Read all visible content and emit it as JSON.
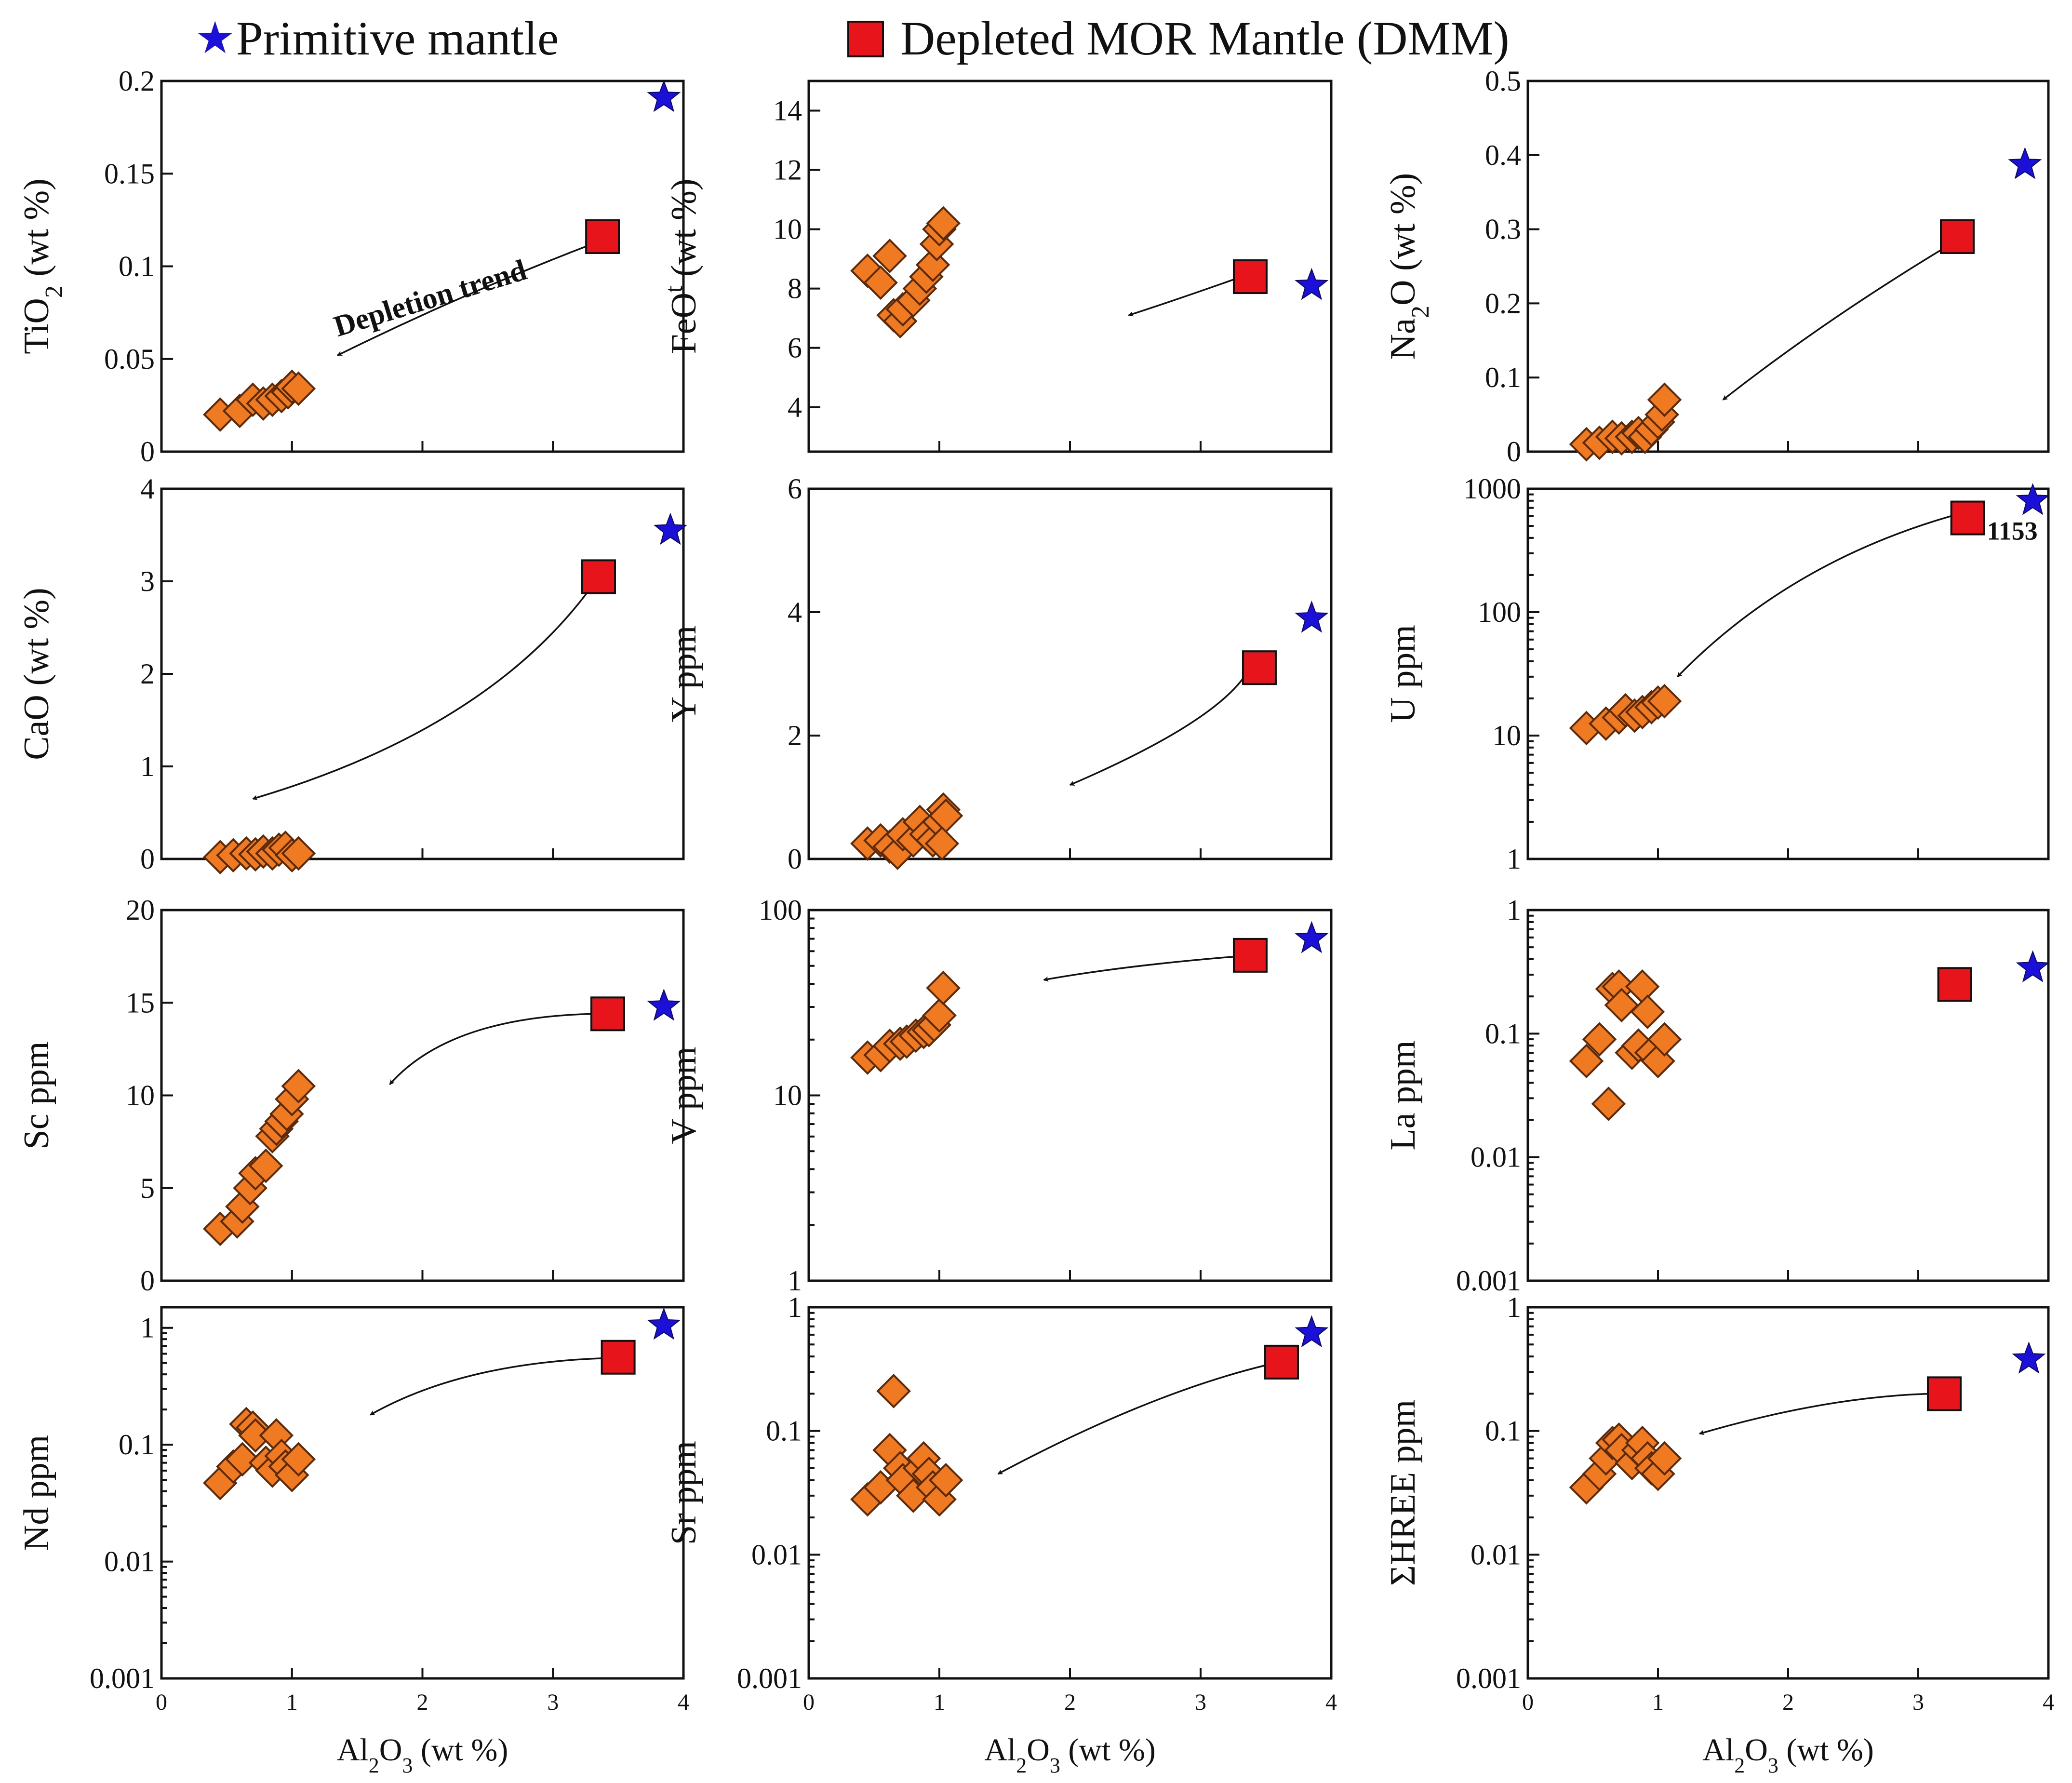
{
  "legend": {
    "primitive_label": "Primitive mantle",
    "dmm_label": "Depleted MOR Mantle (DMM)"
  },
  "colors": {
    "primitive": "#1a10d8",
    "dmm": "#e8141c",
    "sample": "#f07a22",
    "sample_edge": "#5a2a0a"
  },
  "chart_data": [
    {
      "id": "tio2",
      "type": "scatter",
      "scale": "linear",
      "ylabel": "TiO2 (wt %)",
      "ylim": [
        0,
        0.2
      ],
      "xlim": [
        0,
        4
      ],
      "yticks": [
        {
          "v": 0,
          "t": "0"
        },
        {
          "v": 0.05,
          "t": "0.05"
        },
        {
          "v": 0.1,
          "t": "0.1"
        },
        {
          "v": 0.15,
          "t": "0.15"
        },
        {
          "v": 0.2,
          "t": "0.2"
        }
      ],
      "pm": [
        3.85,
        0.191
      ],
      "dmm": [
        3.38,
        0.116
      ],
      "samples": [
        [
          0.45,
          0.02
        ],
        [
          0.6,
          0.022
        ],
        [
          0.7,
          0.028
        ],
        [
          0.78,
          0.026
        ],
        [
          0.85,
          0.028
        ],
        [
          0.92,
          0.03
        ],
        [
          0.97,
          0.032
        ],
        [
          1.0,
          0.035
        ],
        [
          1.05,
          0.034
        ]
      ],
      "arrow": [
        [
          3.3,
          0.112
        ],
        [
          2.3,
          0.085
        ],
        [
          1.35,
          0.052
        ]
      ],
      "annotation": "Depletion trend"
    },
    {
      "id": "feo",
      "type": "scatter",
      "scale": "linear",
      "ylabel": "FeOt (wt %)",
      "ylim": [
        2.5,
        15
      ],
      "xlim": [
        0,
        4
      ],
      "yticks": [
        {
          "v": 4,
          "t": "4"
        },
        {
          "v": 6,
          "t": "6"
        },
        {
          "v": 8,
          "t": "8"
        },
        {
          "v": 10,
          "t": "10"
        },
        {
          "v": 12,
          "t": "12"
        },
        {
          "v": 14,
          "t": "14"
        }
      ],
      "pm": [
        3.85,
        8.1
      ],
      "dmm": [
        3.38,
        8.4
      ],
      "samples": [
        [
          0.45,
          8.6
        ],
        [
          0.55,
          8.2
        ],
        [
          0.62,
          9.1
        ],
        [
          0.65,
          7.1
        ],
        [
          0.7,
          6.9
        ],
        [
          0.72,
          7.3
        ],
        [
          0.8,
          7.6
        ],
        [
          0.85,
          8.0
        ],
        [
          0.9,
          8.4
        ],
        [
          0.95,
          8.8
        ],
        [
          0.98,
          9.5
        ],
        [
          1.0,
          10.0
        ],
        [
          1.03,
          10.2
        ]
      ],
      "arrow": [
        [
          3.25,
          8.3
        ],
        [
          2.8,
          7.6
        ],
        [
          2.45,
          7.1
        ]
      ]
    },
    {
      "id": "na2o",
      "type": "scatter",
      "scale": "linear",
      "ylabel": "Na2O (wt %)",
      "ylim": [
        0,
        0.5
      ],
      "xlim": [
        0,
        4
      ],
      "yticks": [
        {
          "v": 0,
          "t": "0"
        },
        {
          "v": 0.1,
          "t": "0.1"
        },
        {
          "v": 0.2,
          "t": "0.2"
        },
        {
          "v": 0.3,
          "t": "0.3"
        },
        {
          "v": 0.4,
          "t": "0.4"
        },
        {
          "v": 0.5,
          "t": "0.5"
        }
      ],
      "pm": [
        3.82,
        0.387
      ],
      "dmm": [
        3.3,
        0.29
      ],
      "samples": [
        [
          0.45,
          0.01
        ],
        [
          0.55,
          0.012
        ],
        [
          0.65,
          0.02
        ],
        [
          0.72,
          0.018
        ],
        [
          0.8,
          0.02
        ],
        [
          0.85,
          0.025
        ],
        [
          0.9,
          0.02
        ],
        [
          0.95,
          0.03
        ],
        [
          1.0,
          0.04
        ],
        [
          1.03,
          0.05
        ],
        [
          1.05,
          0.07
        ]
      ],
      "arrow": [
        [
          3.25,
          0.28
        ],
        [
          2.3,
          0.18
        ],
        [
          1.5,
          0.07
        ]
      ]
    },
    {
      "id": "cao",
      "type": "scatter",
      "scale": "linear",
      "ylabel": "CaO (wt %)",
      "ylim": [
        0,
        4
      ],
      "xlim": [
        0,
        4
      ],
      "yticks": [
        {
          "v": 0,
          "t": "0"
        },
        {
          "v": 1,
          "t": "1"
        },
        {
          "v": 2,
          "t": "2"
        },
        {
          "v": 3,
          "t": "3"
        },
        {
          "v": 4,
          "t": "4"
        }
      ],
      "pm": [
        3.9,
        3.55
      ],
      "dmm": [
        3.35,
        3.05
      ],
      "samples": [
        [
          0.45,
          0.02
        ],
        [
          0.55,
          0.04
        ],
        [
          0.65,
          0.06
        ],
        [
          0.72,
          0.05
        ],
        [
          0.78,
          0.08
        ],
        [
          0.85,
          0.06
        ],
        [
          0.9,
          0.1
        ],
        [
          0.95,
          0.12
        ],
        [
          1.0,
          0.04
        ],
        [
          1.05,
          0.06
        ]
      ],
      "arrow": [
        [
          3.3,
          2.95
        ],
        [
          2.5,
          1.4
        ],
        [
          0.7,
          0.65
        ]
      ]
    },
    {
      "id": "y",
      "type": "scatter",
      "scale": "linear",
      "ylabel": "Y ppm",
      "ylim": [
        0,
        6
      ],
      "xlim": [
        0,
        4
      ],
      "yticks": [
        {
          "v": 0,
          "t": "0"
        },
        {
          "v": 2,
          "t": "2"
        },
        {
          "v": 4,
          "t": "4"
        },
        {
          "v": 6,
          "t": "6"
        }
      ],
      "pm": [
        3.85,
        3.9
      ],
      "dmm": [
        3.45,
        3.1
      ],
      "samples": [
        [
          0.45,
          0.25
        ],
        [
          0.55,
          0.3
        ],
        [
          0.62,
          0.2
        ],
        [
          0.68,
          0.1
        ],
        [
          0.72,
          0.4
        ],
        [
          0.8,
          0.3
        ],
        [
          0.85,
          0.6
        ],
        [
          0.9,
          0.4
        ],
        [
          0.95,
          0.3
        ],
        [
          1.0,
          0.6
        ],
        [
          1.03,
          0.8
        ],
        [
          1.05,
          0.7
        ],
        [
          1.02,
          0.25
        ]
      ],
      "arrow": [
        [
          3.35,
          3.0
        ],
        [
          3.1,
          2.2
        ],
        [
          2.0,
          1.2
        ]
      ]
    },
    {
      "id": "u",
      "type": "scatter",
      "scale": "log",
      "ylabel": "U ppm",
      "ylim": [
        1,
        1000
      ],
      "xlim": [
        0,
        4
      ],
      "yticks": [
        {
          "v": 1,
          "t": "1"
        },
        {
          "v": 10,
          "t": "10"
        },
        {
          "v": 100,
          "t": "100"
        },
        {
          "v": 1000,
          "t": "1000"
        }
      ],
      "pm": [
        3.88,
        800
      ],
      "dmm": [
        3.38,
        580
      ],
      "samples": [
        [
          0.45,
          11.5
        ],
        [
          0.6,
          12.5
        ],
        [
          0.7,
          14
        ],
        [
          0.75,
          16
        ],
        [
          0.82,
          14.5
        ],
        [
          0.88,
          15.5
        ],
        [
          0.95,
          17
        ],
        [
          1.0,
          18.5
        ],
        [
          1.05,
          19
        ]
      ],
      "arrow": [
        [
          3.25,
          600
        ],
        [
          2.0,
          250
        ],
        [
          1.15,
          30
        ]
      ],
      "annotation": "1153"
    },
    {
      "id": "sc",
      "type": "scatter",
      "scale": "linear",
      "ylabel": "Sc ppm",
      "ylim": [
        0,
        20
      ],
      "xlim": [
        0,
        4
      ],
      "yticks": [
        {
          "v": 0,
          "t": "0"
        },
        {
          "v": 5,
          "t": "5"
        },
        {
          "v": 10,
          "t": "10"
        },
        {
          "v": 15,
          "t": "15"
        },
        {
          "v": 20,
          "t": "20"
        }
      ],
      "pm": [
        3.85,
        14.8
      ],
      "dmm": [
        3.42,
        14.4
      ],
      "samples": [
        [
          0.45,
          2.8
        ],
        [
          0.58,
          3.2
        ],
        [
          0.62,
          4.0
        ],
        [
          0.68,
          5.0
        ],
        [
          0.72,
          5.8
        ],
        [
          0.8,
          6.2
        ],
        [
          0.85,
          7.8
        ],
        [
          0.88,
          8.2
        ],
        [
          0.92,
          8.6
        ],
        [
          0.96,
          9.0
        ],
        [
          1.0,
          9.8
        ],
        [
          1.05,
          10.5
        ]
      ],
      "arrow": [
        [
          3.3,
          14.4
        ],
        [
          2.2,
          14.2
        ],
        [
          1.75,
          10.6
        ]
      ]
    },
    {
      "id": "v",
      "type": "scatter",
      "scale": "log",
      "ylabel": "V ppm",
      "ylim": [
        1,
        100
      ],
      "xlim": [
        0,
        4
      ],
      "yticks": [
        {
          "v": 1,
          "t": "1"
        },
        {
          "v": 10,
          "t": "10"
        },
        {
          "v": 100,
          "t": "100"
        }
      ],
      "pm": [
        3.85,
        70
      ],
      "dmm": [
        3.38,
        57
      ],
      "samples": [
        [
          0.45,
          16
        ],
        [
          0.55,
          16.5
        ],
        [
          0.62,
          18.5
        ],
        [
          0.7,
          19
        ],
        [
          0.75,
          19.5
        ],
        [
          0.82,
          21
        ],
        [
          0.88,
          22
        ],
        [
          0.92,
          22.5
        ],
        [
          0.96,
          24
        ],
        [
          1.0,
          27
        ],
        [
          1.03,
          38
        ]
      ],
      "arrow": [
        [
          3.25,
          56
        ],
        [
          2.4,
          50
        ],
        [
          1.8,
          42
        ]
      ]
    },
    {
      "id": "la",
      "type": "scatter",
      "scale": "log",
      "ylabel": "La ppm",
      "ylim": [
        0.001,
        1
      ],
      "xlim": [
        0,
        4
      ],
      "yticks": [
        {
          "v": 0.001,
          "t": "0.001"
        },
        {
          "v": 0.01,
          "t": "0.01"
        },
        {
          "v": 0.1,
          "t": "0.1"
        },
        {
          "v": 1,
          "t": "1"
        }
      ],
      "pm": [
        3.88,
        0.34
      ],
      "dmm": [
        3.28,
        0.25
      ],
      "samples": [
        [
          0.45,
          0.06
        ],
        [
          0.55,
          0.09
        ],
        [
          0.62,
          0.027
        ],
        [
          0.65,
          0.23
        ],
        [
          0.7,
          0.24
        ],
        [
          0.72,
          0.17
        ],
        [
          0.8,
          0.07
        ],
        [
          0.85,
          0.08
        ],
        [
          0.88,
          0.24
        ],
        [
          0.92,
          0.15
        ],
        [
          0.95,
          0.07
        ],
        [
          1.0,
          0.06
        ],
        [
          1.05,
          0.09
        ]
      ]
    },
    {
      "id": "nd",
      "type": "scatter",
      "scale": "log",
      "ylabel": "Nd ppm",
      "ylim": [
        0.001,
        1.5
      ],
      "xlim": [
        0,
        4
      ],
      "yticks": [
        {
          "v": 0.001,
          "t": "0.001"
        },
        {
          "v": 0.01,
          "t": "0.01"
        },
        {
          "v": 0.1,
          "t": "0.1"
        },
        {
          "v": 1,
          "t": "1"
        }
      ],
      "pm": [
        3.85,
        1.05
      ],
      "dmm": [
        3.5,
        0.56
      ],
      "samples": [
        [
          0.45,
          0.047
        ],
        [
          0.55,
          0.065
        ],
        [
          0.62,
          0.075
        ],
        [
          0.65,
          0.15
        ],
        [
          0.7,
          0.14
        ],
        [
          0.72,
          0.12
        ],
        [
          0.8,
          0.07
        ],
        [
          0.85,
          0.06
        ],
        [
          0.88,
          0.12
        ],
        [
          0.92,
          0.08
        ],
        [
          0.95,
          0.065
        ],
        [
          1.0,
          0.055
        ],
        [
          1.05,
          0.075
        ]
      ],
      "arrow": [
        [
          3.4,
          0.55
        ],
        [
          2.3,
          0.5
        ],
        [
          1.6,
          0.18
        ]
      ]
    },
    {
      "id": "sr",
      "type": "scatter",
      "scale": "log",
      "ylabel": "Sr ppm",
      "ylim": [
        0.001,
        1
      ],
      "xlim": [
        0,
        4
      ],
      "yticks": [
        {
          "v": 0.001,
          "t": "0.001"
        },
        {
          "v": 0.01,
          "t": "0.01"
        },
        {
          "v": 0.1,
          "t": "0.1"
        },
        {
          "v": 1,
          "t": "1"
        }
      ],
      "pm": [
        3.85,
        0.62
      ],
      "dmm": [
        3.62,
        0.36
      ],
      "samples": [
        [
          0.45,
          0.028
        ],
        [
          0.55,
          0.035
        ],
        [
          0.62,
          0.07
        ],
        [
          0.65,
          0.21
        ],
        [
          0.7,
          0.05
        ],
        [
          0.72,
          0.04
        ],
        [
          0.8,
          0.03
        ],
        [
          0.85,
          0.05
        ],
        [
          0.88,
          0.06
        ],
        [
          0.92,
          0.045
        ],
        [
          0.95,
          0.035
        ],
        [
          1.0,
          0.028
        ],
        [
          1.05,
          0.04
        ]
      ],
      "arrow": [
        [
          3.5,
          0.34
        ],
        [
          2.6,
          0.2
        ],
        [
          1.45,
          0.045
        ]
      ]
    },
    {
      "id": "hree",
      "type": "scatter",
      "scale": "log",
      "ylabel": "ΣHREE ppm",
      "ylim": [
        0.001,
        1
      ],
      "xlim": [
        0,
        4
      ],
      "yticks": [
        {
          "v": 0.001,
          "t": "0.001"
        },
        {
          "v": 0.01,
          "t": "0.01"
        },
        {
          "v": 0.1,
          "t": "0.1"
        },
        {
          "v": 1,
          "t": "1"
        }
      ],
      "pm": [
        3.85,
        0.38
      ],
      "dmm": [
        3.2,
        0.2
      ],
      "samples": [
        [
          0.45,
          0.035
        ],
        [
          0.55,
          0.045
        ],
        [
          0.6,
          0.06
        ],
        [
          0.65,
          0.08
        ],
        [
          0.7,
          0.085
        ],
        [
          0.72,
          0.07
        ],
        [
          0.8,
          0.055
        ],
        [
          0.85,
          0.07
        ],
        [
          0.88,
          0.08
        ],
        [
          0.92,
          0.06
        ],
        [
          0.95,
          0.05
        ],
        [
          1.0,
          0.045
        ],
        [
          1.05,
          0.06
        ]
      ],
      "arrow": [
        [
          3.1,
          0.2
        ],
        [
          2.3,
          0.19
        ],
        [
          1.32,
          0.095
        ]
      ]
    }
  ],
  "x_axis": {
    "label": "Al2O3 (wt %)",
    "ticks": [
      "0",
      "1",
      "2",
      "3",
      "4"
    ]
  }
}
